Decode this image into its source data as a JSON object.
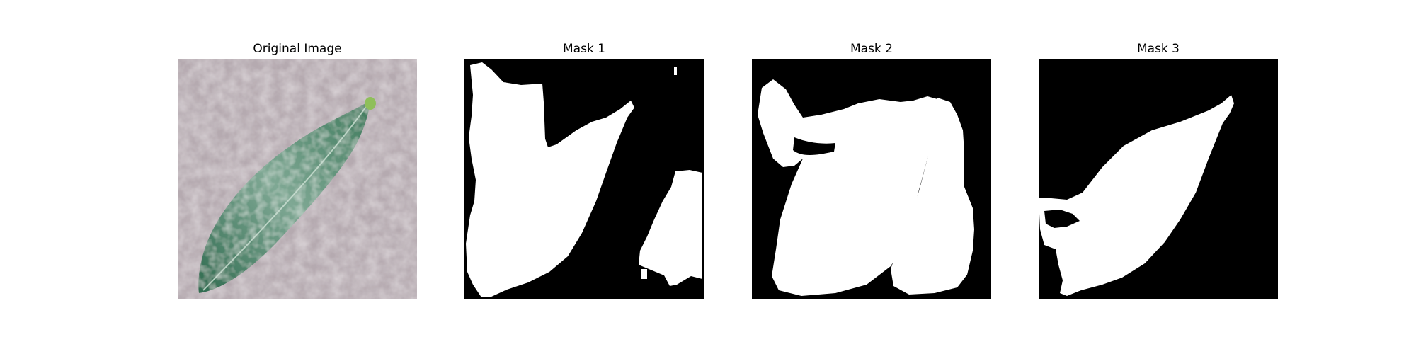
{
  "figure": {
    "panels": [
      {
        "title": "Original Image",
        "kind": "photo"
      },
      {
        "title": "Mask 1",
        "kind": "mask"
      },
      {
        "title": "Mask 2",
        "kind": "mask"
      },
      {
        "title": "Mask 3",
        "kind": "mask"
      }
    ]
  },
  "colors": {
    "background": "#ffffff",
    "mask_foreground": "#ffffff",
    "mask_background": "#000000",
    "photo_surface": "#b9aeb3",
    "leaf_dark": "#2f6b4f",
    "leaf_light": "#8fb7a3",
    "leaf_tip": "#8fbf5a"
  }
}
